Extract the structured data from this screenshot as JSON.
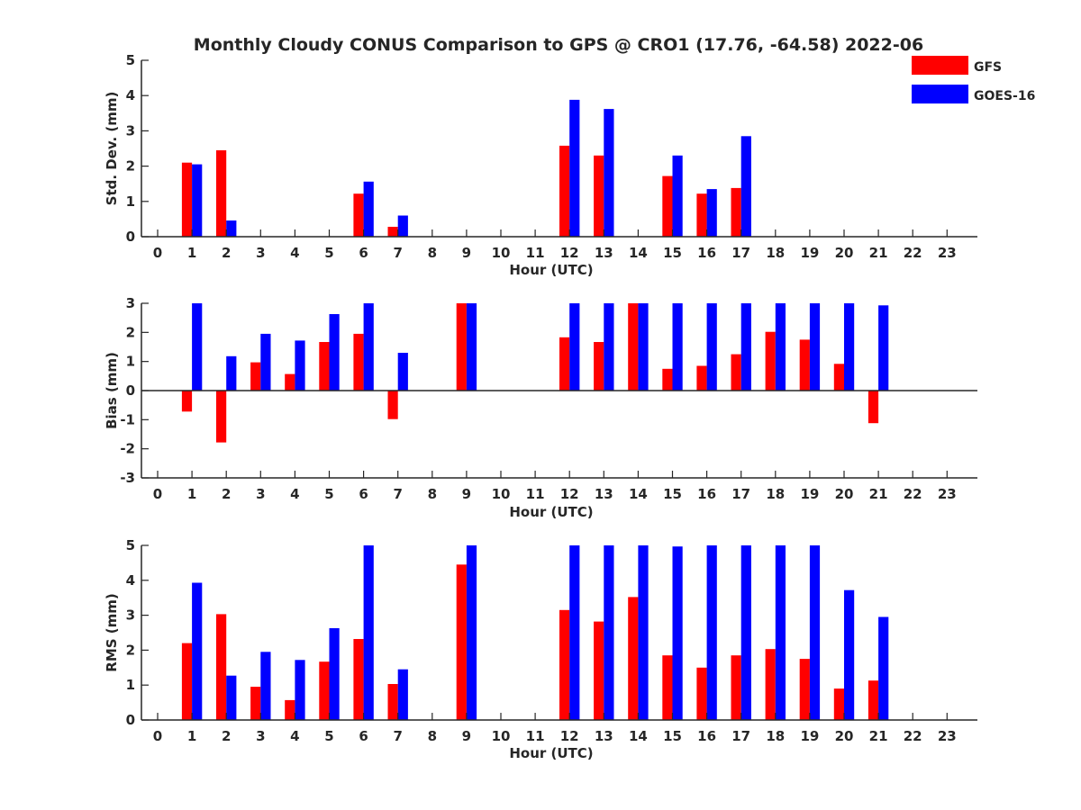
{
  "chart_data": {
    "title": "Monthly Cloudy CONUS Comparison to GPS @ CRO1 (17.76, -64.58) 2022-06",
    "legend": {
      "placement": "top-right",
      "entries": [
        {
          "name": "GFS",
          "color": "#ff0000"
        },
        {
          "name": "GOES-16",
          "color": "#0000ff"
        }
      ]
    },
    "panels": [
      {
        "type": "bar",
        "ylabel": "Std. Dev. (mm)",
        "xlabel": "Hour (UTC)",
        "ylim": [
          0,
          5
        ],
        "yticks": [
          0,
          1,
          2,
          3,
          4,
          5
        ],
        "categories": [
          0,
          1,
          2,
          3,
          4,
          5,
          6,
          7,
          8,
          9,
          10,
          11,
          12,
          13,
          14,
          15,
          16,
          17,
          18,
          19,
          20,
          21,
          22,
          23
        ],
        "series": [
          {
            "name": "GFS",
            "values": [
              null,
              2.1,
              2.45,
              null,
              null,
              null,
              1.22,
              0.28,
              null,
              null,
              null,
              null,
              2.58,
              2.3,
              null,
              1.72,
              1.22,
              1.38,
              null,
              null,
              null,
              null,
              null,
              null
            ]
          },
          {
            "name": "GOES-16",
            "values": [
              null,
              2.05,
              0.46,
              null,
              null,
              null,
              1.56,
              0.6,
              null,
              null,
              null,
              null,
              3.88,
              3.62,
              null,
              2.3,
              1.35,
              2.85,
              null,
              null,
              null,
              null,
              null,
              null
            ]
          }
        ]
      },
      {
        "type": "bar",
        "ylabel": "Bias (mm)",
        "xlabel": "Hour (UTC)",
        "ylim": [
          -3,
          3
        ],
        "yticks": [
          -3,
          -2,
          -1,
          0,
          1,
          2,
          3
        ],
        "categories": [
          0,
          1,
          2,
          3,
          4,
          5,
          6,
          7,
          8,
          9,
          10,
          11,
          12,
          13,
          14,
          15,
          16,
          17,
          18,
          19,
          20,
          21,
          22,
          23
        ],
        "series": [
          {
            "name": "GFS",
            "values": [
              null,
              -0.72,
              -1.78,
              0.97,
              0.57,
              1.67,
              1.95,
              -0.98,
              null,
              3.0,
              null,
              null,
              1.83,
              1.67,
              3.0,
              0.75,
              0.85,
              1.25,
              2.02,
              1.75,
              0.92,
              -1.12,
              null,
              null
            ]
          },
          {
            "name": "GOES-16",
            "values": [
              null,
              3.0,
              1.18,
              1.95,
              1.72,
              2.63,
              3.0,
              1.3,
              null,
              3.0,
              null,
              null,
              3.0,
              3.0,
              3.0,
              3.0,
              3.0,
              3.0,
              3.0,
              3.0,
              3.0,
              2.93,
              null,
              null
            ]
          }
        ]
      },
      {
        "type": "bar",
        "ylabel": "RMS (mm)",
        "xlabel": "Hour (UTC)",
        "ylim": [
          0,
          5
        ],
        "yticks": [
          0,
          1,
          2,
          3,
          4,
          5
        ],
        "categories": [
          0,
          1,
          2,
          3,
          4,
          5,
          6,
          7,
          8,
          9,
          10,
          11,
          12,
          13,
          14,
          15,
          16,
          17,
          18,
          19,
          20,
          21,
          22,
          23
        ],
        "series": [
          {
            "name": "GFS",
            "values": [
              null,
              2.2,
              3.03,
              0.95,
              0.57,
              1.67,
              2.32,
              1.03,
              null,
              4.45,
              null,
              null,
              3.15,
              2.82,
              3.52,
              1.85,
              1.5,
              1.85,
              2.03,
              1.75,
              0.9,
              1.13,
              null,
              null
            ]
          },
          {
            "name": "GOES-16",
            "values": [
              null,
              3.93,
              1.27,
              1.95,
              1.72,
              2.63,
              5.0,
              1.45,
              null,
              5.0,
              null,
              null,
              5.0,
              5.0,
              5.0,
              4.97,
              5.0,
              5.0,
              5.0,
              5.0,
              3.72,
              2.95,
              null,
              null
            ]
          }
        ]
      }
    ]
  }
}
